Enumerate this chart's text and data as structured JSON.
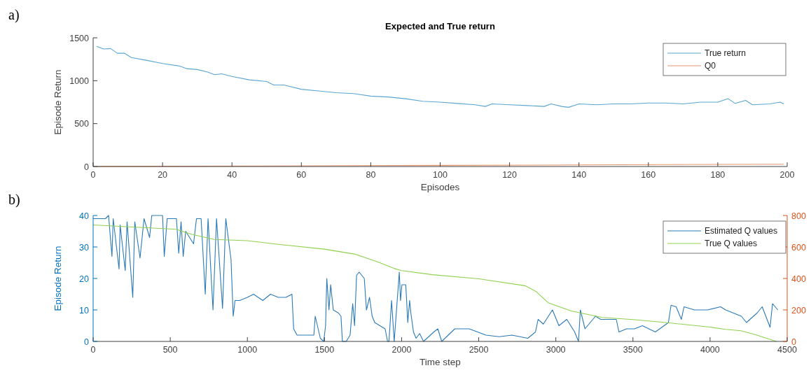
{
  "chart_data": [
    {
      "type": "line",
      "title": "Expected and True return",
      "xlabel": "Episodes",
      "ylabel": "Episode Return",
      "annotations": [
        "a)"
      ],
      "xlim": [
        0,
        200
      ],
      "xticks": [
        0,
        20,
        40,
        60,
        80,
        100,
        120,
        140,
        160,
        180,
        200
      ],
      "ylim": [
        0,
        1500
      ],
      "yticks": [
        0,
        500,
        1000,
        1500
      ],
      "legend": "top right",
      "series": [
        {
          "name": "True return",
          "color": "#5aa6d2",
          "x": [
            1,
            3,
            5,
            7,
            9,
            11,
            15,
            20,
            25,
            27,
            30,
            33,
            35,
            37,
            40,
            45,
            50,
            52,
            55,
            60,
            65,
            70,
            75,
            80,
            85,
            90,
            95,
            100,
            105,
            110,
            113,
            115,
            120,
            125,
            130,
            132,
            135,
            137,
            140,
            145,
            150,
            155,
            160,
            165,
            170,
            175,
            180,
            183,
            185,
            188,
            190,
            195,
            198,
            199
          ],
          "values": [
            1400,
            1370,
            1375,
            1320,
            1320,
            1270,
            1240,
            1200,
            1170,
            1140,
            1130,
            1100,
            1070,
            1080,
            1050,
            1010,
            990,
            950,
            950,
            900,
            880,
            860,
            850,
            820,
            810,
            790,
            760,
            750,
            735,
            720,
            700,
            730,
            720,
            710,
            700,
            730,
            700,
            690,
            730,
            720,
            730,
            730,
            740,
            740,
            730,
            750,
            750,
            790,
            735,
            770,
            720,
            730,
            750,
            730
          ]
        },
        {
          "name": "Q0",
          "color": "#e8956b",
          "x": [
            1,
            50,
            100,
            150,
            199
          ],
          "values": [
            1,
            6,
            13,
            20,
            27
          ]
        }
      ]
    },
    {
      "type": "line",
      "xlabel": "Time step",
      "ylabel": "Episode Return",
      "annotations": [
        "b)"
      ],
      "xlim": [
        0,
        4500
      ],
      "xticks": [
        0,
        500,
        1000,
        1500,
        2000,
        2500,
        3000,
        3500,
        4000,
        4500
      ],
      "ylim": [
        0,
        40
      ],
      "yticks": [
        0,
        10,
        20,
        30,
        40
      ],
      "y2lim": [
        0,
        800
      ],
      "y2ticks": [
        0,
        200,
        400,
        600,
        800
      ],
      "legend": "top right",
      "series": [
        {
          "name": "Estimated Q values",
          "color": "#2a7ab8",
          "x": [
            0,
            80,
            100,
            122,
            130,
            168,
            175,
            208,
            220,
            257,
            270,
            304,
            330,
            366,
            380,
            420,
            450,
            461,
            480,
            540,
            555,
            570,
            584,
            600,
            651,
            670,
            700,
            727,
            745,
            777,
            800,
            839,
            860,
            894,
            908,
            920,
            950,
            1000,
            1040,
            1100,
            1150,
            1200,
            1250,
            1289,
            1300,
            1322,
            1400,
            1431,
            1440,
            1473,
            1495,
            1507,
            1515,
            1529,
            1540,
            1557,
            1591,
            1607,
            1616,
            1641,
            1666,
            1683,
            1695,
            1708,
            1725,
            1758,
            1772,
            1792,
            1809,
            1826,
            1859,
            1893,
            1909,
            1918,
            1935,
            1952,
            1985,
            1993,
            2002,
            2027,
            2040,
            2052,
            2060,
            2077,
            2094,
            2117,
            2142,
            2209,
            2235,
            2260,
            2345,
            2438,
            2547,
            2632,
            2716,
            2818,
            2868,
            2885,
            2919,
            2978,
            3020,
            3071,
            3122,
            3147,
            3159,
            3189,
            3223,
            3257,
            3291,
            3392,
            3409,
            3459,
            3510,
            3561,
            3645,
            3730,
            3747,
            3780,
            3814,
            3831,
            3899,
            3983,
            4068,
            4101,
            4203,
            4236,
            4304,
            4338,
            4389,
            4405,
            4439
          ],
          "values": [
            39,
            39,
            40,
            27,
            39,
            23,
            37,
            22.5,
            38,
            14,
            38,
            26.5,
            39,
            33,
            40,
            40,
            40,
            27,
            39,
            39,
            28,
            38,
            27,
            35,
            31,
            39,
            39,
            15,
            39,
            10,
            39,
            10.5,
            39,
            26,
            8,
            13,
            13,
            14,
            15,
            13,
            15,
            14,
            14,
            15,
            4,
            2,
            2,
            2,
            8,
            1,
            0,
            5,
            20,
            10,
            18,
            10,
            9,
            8,
            0,
            0,
            2,
            12,
            5,
            21,
            22,
            20,
            10,
            14,
            8,
            6,
            5,
            4,
            0,
            0,
            13,
            0,
            22,
            13,
            18,
            18,
            6,
            13,
            9,
            3,
            1,
            2.5,
            0,
            3,
            4,
            0,
            4,
            4,
            2,
            1.5,
            2,
            1,
            3,
            7,
            5.5,
            10,
            5,
            7,
            3,
            0,
            10,
            4,
            6,
            8,
            7,
            7,
            3,
            4,
            4,
            5,
            3,
            6,
            11.5,
            11,
            7,
            11,
            10,
            10,
            11,
            10,
            8,
            6,
            9,
            11,
            4.5,
            12,
            10
          ]
        },
        {
          "name": "True Q values",
          "color": "#8fd14f",
          "axis": "y2",
          "x": [
            0,
            540,
            584,
            640,
            787,
            1000,
            1200,
            1500,
            1700,
            1850,
            1950,
            2000,
            2200,
            2500,
            2800,
            2870,
            2950,
            3100,
            3300,
            3500,
            3700,
            4000,
            4100,
            4200,
            4300,
            4430
          ],
          "values": [
            740,
            712,
            698,
            680,
            648,
            640,
            617,
            586,
            554,
            503,
            464,
            450,
            424,
            398,
            354,
            318,
            246,
            193,
            152,
            139,
            121,
            91,
            77,
            68,
            41,
            0
          ]
        }
      ]
    }
  ]
}
